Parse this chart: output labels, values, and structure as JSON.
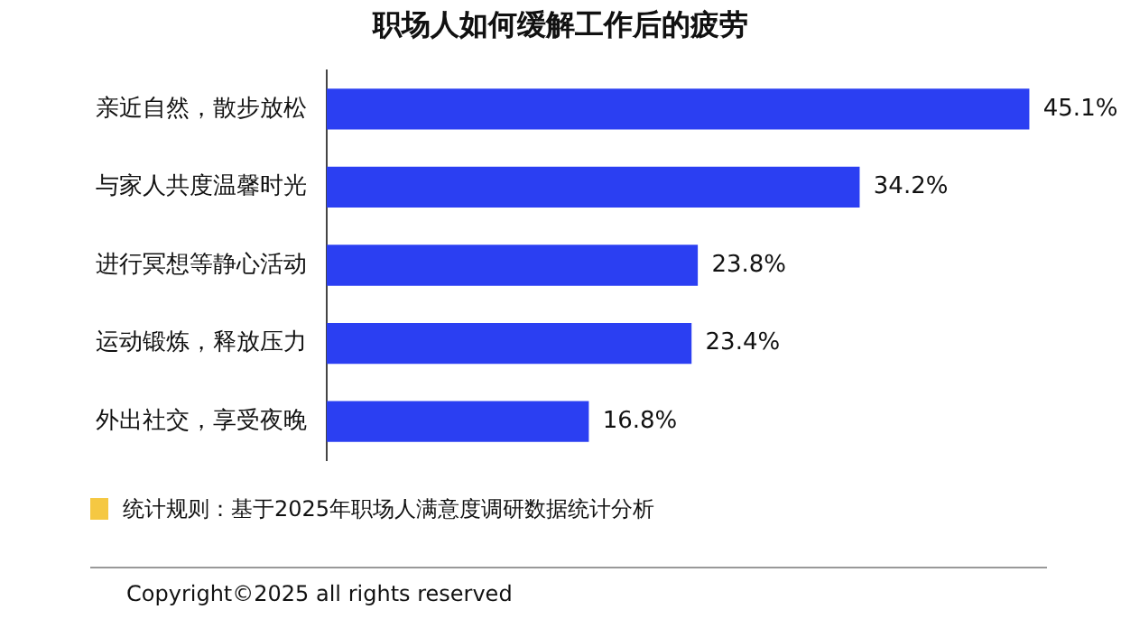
{
  "chart_data": {
    "type": "bar",
    "orientation": "horizontal",
    "title": "职场人如何缓解工作后的疲劳",
    "categories": [
      "亲近自然，散步放松",
      "与家人共度温馨时光",
      "进行冥想等静心活动",
      "运动锻炼，释放压力",
      "外出社交，享受夜晚"
    ],
    "values": [
      45.1,
      34.2,
      23.8,
      23.4,
      16.8
    ],
    "value_labels": [
      "45.1%",
      "34.2%",
      "23.8%",
      "23.4%",
      "16.8%"
    ],
    "color": "#2b3ff2",
    "annotations": [
      "统计规则：基于2025年职场人满意度调研数据统计分析",
      "Copyright©2025 all rights reserved"
    ],
    "grid": false,
    "legend": false
  }
}
